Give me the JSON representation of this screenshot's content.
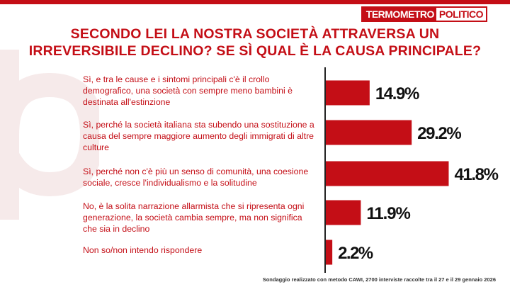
{
  "header": {
    "logo_part1": "TERMOMETRO",
    "logo_part2": "POLITICO"
  },
  "title_line1": "SECONDO LEI LA NOSTRA SOCIETÀ ATTRAVERSA UN",
  "title_line2": "IRREVERSIBILE DECLINO? SE SÌ QUAL È LA CAUSA PRINCIPALE?",
  "chart_data": {
    "type": "bar",
    "orientation": "horizontal",
    "title": "SECONDO LEI LA NOSTRA SOCIETÀ ATTRAVERSA UN IRREVERSIBILE DECLINO? SE SÌ QUAL È LA CAUSA PRINCIPALE?",
    "categories": [
      "Sì, e tra le cause e i sintomi principali c'è il crollo demografico, una società con sempre meno bambini è destinata all'estinzione",
      "Sì, perché la società italiana sta subendo una sostituzione a causa del sempre maggiore aumento degli immigrati di altre culture",
      "Sì, perché non c'è più un senso di comunità, una coesione sociale, cresce l'individualismo e la solitudine",
      "No, è la solita narrazione allarmista che si ripresenta ogni generazione, la società cambia sempre, ma non significa che sia in declino",
      "Non so/non intendo rispondere"
    ],
    "values": [
      14.9,
      29.2,
      41.8,
      11.9,
      2.2
    ],
    "value_labels": [
      "14.9%",
      "29.2%",
      "41.8%",
      "11.9%",
      "2.2%"
    ],
    "xlim": [
      0,
      45
    ],
    "bar_color": "#c40e16",
    "xlabel": "",
    "ylabel": ""
  },
  "footnote": "Sondaggio realizzato con metodo CAWI, 2700 interviste raccolte tra il 27 e il 29 gennaio 2026"
}
